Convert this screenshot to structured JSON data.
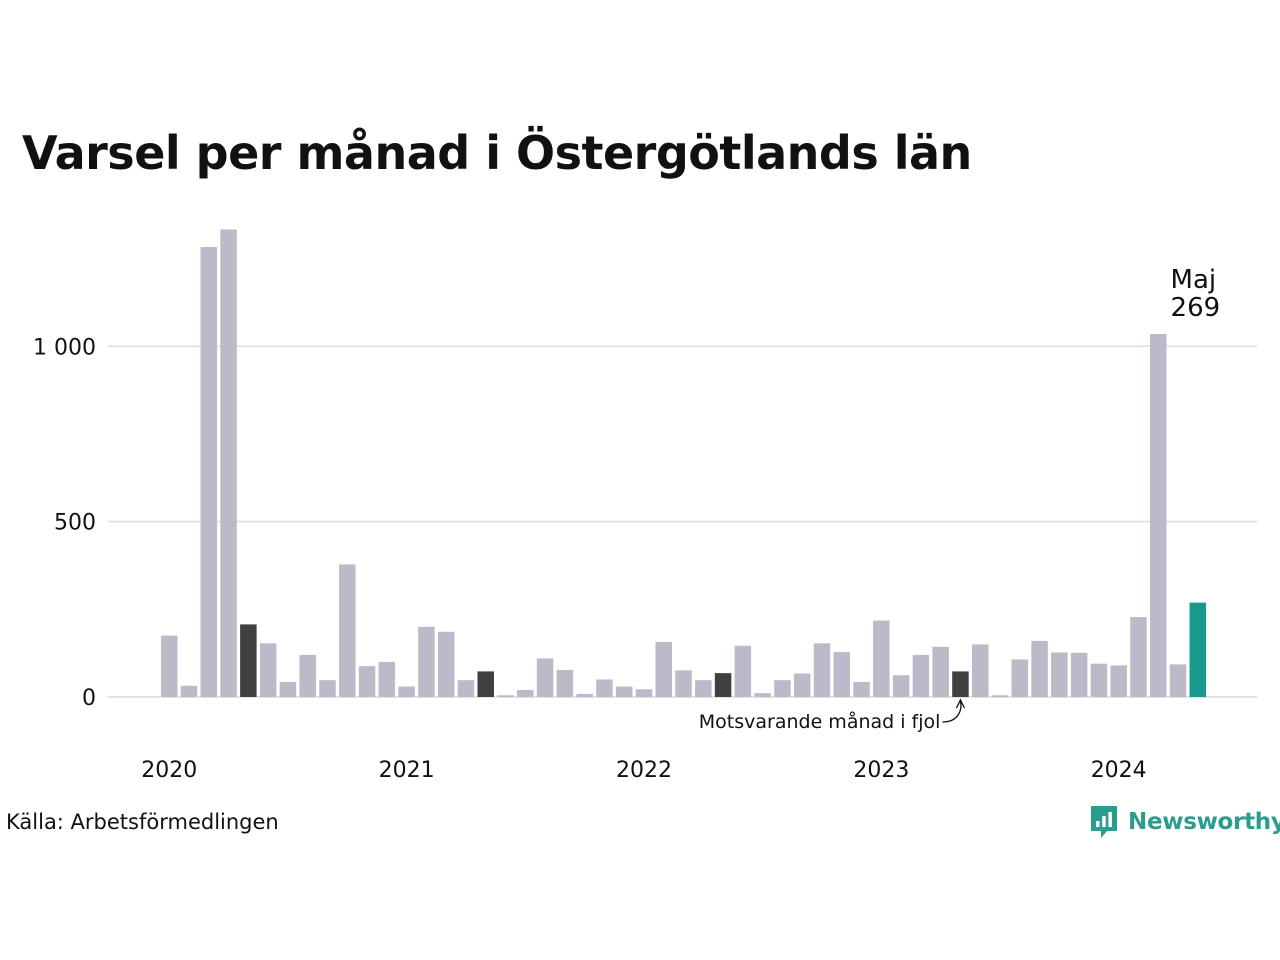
{
  "title": "Varsel per månad i Östergötlands län",
  "source": "Källa: Arbetsförmedlingen",
  "brand": {
    "name": "Newsworthy",
    "icon": "newsworthy-logo-icon",
    "color": "#2a9d8f"
  },
  "colors": {
    "bar": "#bcbac8",
    "same_month_last_year": "#404040",
    "current": "#179a8c",
    "grid": "#e3e3e3"
  },
  "chart_data": {
    "type": "bar",
    "title": "Varsel per månad i Östergötlands län",
    "xlabel": "",
    "ylabel": "",
    "ylim": [
      0,
      1340
    ],
    "yticks": [
      0,
      500,
      1000
    ],
    "ytick_labels": [
      "0",
      "500",
      "1 000"
    ],
    "x_year_labels": [
      {
        "label": "2020",
        "index": 0
      },
      {
        "label": "2021",
        "index": 12
      },
      {
        "label": "2022",
        "index": 24
      },
      {
        "label": "2023",
        "index": 36
      },
      {
        "label": "2024",
        "index": 48
      }
    ],
    "start": "2020-01",
    "values": [
      175,
      32,
      1283,
      1333,
      207,
      153,
      43,
      120,
      48,
      378,
      88,
      100,
      30,
      200,
      186,
      48,
      73,
      5,
      20,
      110,
      77,
      9,
      50,
      30,
      22,
      157,
      76,
      48,
      68,
      146,
      11,
      48,
      67,
      153,
      128,
      43,
      218,
      62,
      120,
      143,
      73,
      150,
      5,
      107,
      160,
      127,
      126,
      95,
      90,
      228,
      1035,
      93,
      269
    ],
    "highlight_same_month_indices": [
      4,
      16,
      28,
      40
    ],
    "current_index": 52,
    "current_label": {
      "month": "Maj",
      "value": "269"
    },
    "annotation": "Motsvarande månad i fjol",
    "grid": true,
    "legend": "none"
  }
}
